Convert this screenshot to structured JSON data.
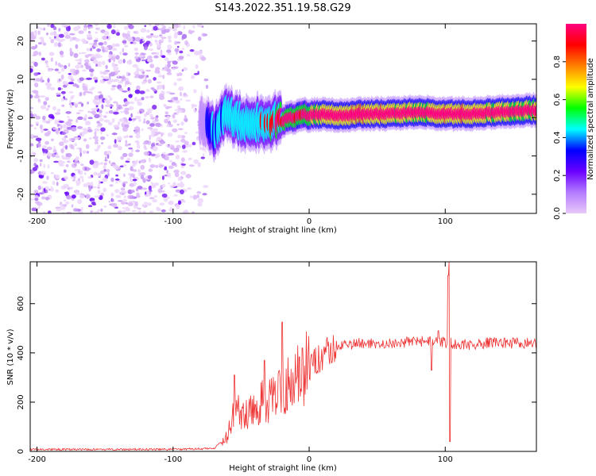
{
  "title": "S143.2022.351.19.58.G29",
  "chart_data": [
    {
      "type": "heatmap",
      "xlabel": "Height of straight line (km)",
      "ylabel": "Frequency (Hz)",
      "xlim": [
        -205,
        167
      ],
      "ylim": [
        -25,
        24.5
      ],
      "xticks": [
        -200,
        -100,
        0,
        100
      ],
      "yticks": [
        -20,
        -10,
        0,
        10,
        20
      ],
      "colorbar": {
        "label": "Normalized spectral amplitude",
        "range": [
          0,
          1
        ],
        "ticks": [
          0.0,
          0.2,
          0.4,
          0.6,
          0.8
        ],
        "colors": [
          "#e9c9f9",
          "#b37bff",
          "#6a00ff",
          "#0000ff",
          "#00ffff",
          "#00ff00",
          "#ffff00",
          "#ff8000",
          "#ff0000",
          "#ff0080"
        ]
      },
      "noise_region_x": [
        -205,
        -75
      ],
      "ridge": {
        "x": [
          -80,
          -75,
          -70,
          -65,
          -60,
          -55,
          -50,
          -45,
          -40,
          -35,
          -30,
          -25,
          -20,
          -15,
          -10,
          -5,
          0,
          10,
          20,
          40,
          60,
          80,
          100,
          120,
          140,
          167
        ],
        "freq": [
          -1,
          -2,
          -4,
          -1,
          1,
          0,
          -1,
          -2,
          -1.5,
          -1,
          -2,
          -1,
          -1,
          0,
          0,
          1,
          0.5,
          1,
          0.5,
          1,
          1,
          1.5,
          1,
          1,
          1.5,
          2
        ],
        "amplitude": [
          0.25,
          0.35,
          0.45,
          0.4,
          0.5,
          0.45,
          0.5,
          0.55,
          0.5,
          0.55,
          0.6,
          0.6,
          0.65,
          0.7,
          0.7,
          0.7,
          0.75,
          0.85,
          0.9,
          0.95,
          0.9,
          0.85,
          0.95,
          0.9,
          0.85,
          0.8
        ]
      }
    },
    {
      "type": "line",
      "xlabel": "Height of straight line (km)",
      "ylabel": "SNR (10 * v/v)",
      "xlim": [
        -205,
        167
      ],
      "ylim": [
        0,
        770
      ],
      "xticks": [
        -200,
        -100,
        0,
        100
      ],
      "yticks": [
        0,
        200,
        400,
        600
      ],
      "color": "#ee3333",
      "envelope": {
        "x": [
          -205,
          -100,
          -70,
          -60,
          -55,
          -50,
          -45,
          -40,
          -35,
          -30,
          -25,
          -20,
          -15,
          -10,
          -5,
          0,
          5,
          10,
          20,
          30,
          40,
          60,
          80,
          90,
          100,
          104,
          110,
          130,
          150,
          167
        ],
        "y": [
          8,
          8,
          12,
          60,
          180,
          150,
          160,
          160,
          200,
          200,
          240,
          230,
          280,
          290,
          330,
          340,
          365,
          390,
          420,
          435,
          440,
          440,
          445,
          450,
          440,
          445,
          430,
          440,
          440,
          440
        ]
      },
      "spikes": [
        {
          "x": -55,
          "y": 310
        },
        {
          "x": -33,
          "y": 370
        },
        {
          "x": -20,
          "y": 525
        },
        {
          "x": -5,
          "y": 420
        },
        {
          "x": 102,
          "y": 715
        },
        {
          "x": 103,
          "y": 770
        },
        {
          "x": 103.5,
          "y": 40
        },
        {
          "x": 90,
          "y": 330
        },
        {
          "x": 95,
          "y": 490
        }
      ]
    }
  ]
}
